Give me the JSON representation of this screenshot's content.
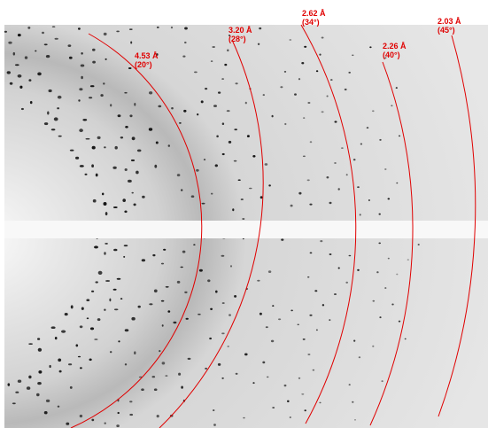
{
  "rings": [
    {
      "resolution": "4.53 Å",
      "angle": "(20°)"
    },
    {
      "resolution": "3.20 Å",
      "angle": "(28°)"
    },
    {
      "resolution": "2.62 Å",
      "angle": "(34°)"
    },
    {
      "resolution": "2.26 Å",
      "angle": "(40°)"
    },
    {
      "resolution": "2.03 Å",
      "angle": "(45°)"
    }
  ]
}
